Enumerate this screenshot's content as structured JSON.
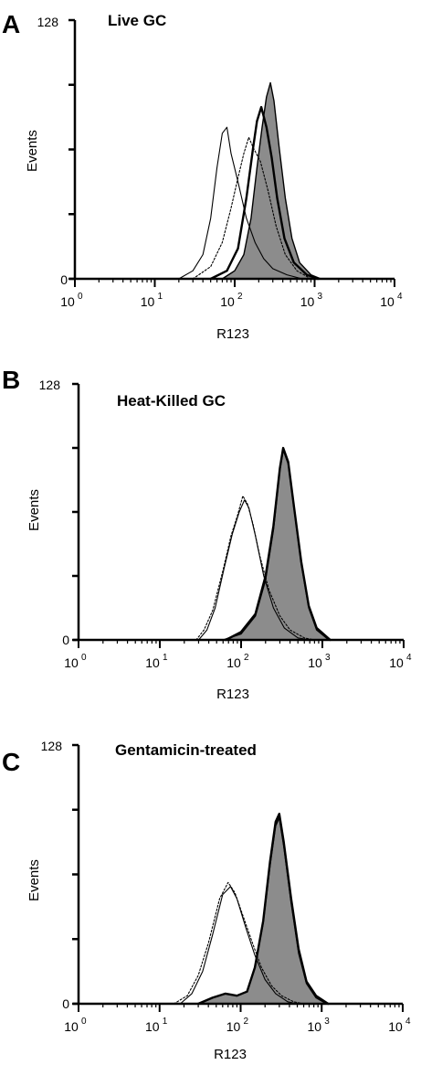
{
  "chart_data": [
    {
      "type": "area",
      "panel_label": "A",
      "title": "Live GC",
      "xlabel": "R123",
      "ylabel": "Events",
      "x_scale": "log",
      "xlim": [
        1,
        10000
      ],
      "ylim": [
        0,
        128
      ],
      "x_ticks": [
        {
          "base": "10",
          "exp": "0"
        },
        {
          "base": "10",
          "exp": "1"
        },
        {
          "base": "10",
          "exp": "2"
        },
        {
          "base": "10",
          "exp": "3"
        },
        {
          "base": "10",
          "exp": "4"
        }
      ],
      "y_ticks": [
        "0",
        "128"
      ],
      "series": [
        {
          "style": "thin-solid",
          "points": [
            [
              20,
              0
            ],
            [
              30,
              4
            ],
            [
              40,
              12
            ],
            [
              50,
              30
            ],
            [
              60,
              55
            ],
            [
              70,
              72
            ],
            [
              80,
              75
            ],
            [
              90,
              62
            ],
            [
              110,
              48
            ],
            [
              140,
              30
            ],
            [
              180,
              18
            ],
            [
              230,
              10
            ],
            [
              300,
              5
            ],
            [
              450,
              2
            ],
            [
              700,
              0
            ]
          ]
        },
        {
          "style": "dotted",
          "points": [
            [
              30,
              0
            ],
            [
              50,
              6
            ],
            [
              70,
              18
            ],
            [
              90,
              35
            ],
            [
              110,
              50
            ],
            [
              130,
              62
            ],
            [
              150,
              70
            ],
            [
              170,
              65
            ],
            [
              210,
              58
            ],
            [
              260,
              44
            ],
            [
              330,
              26
            ],
            [
              430,
              12
            ],
            [
              600,
              4
            ],
            [
              900,
              0
            ]
          ]
        },
        {
          "style": "thick-solid",
          "points": [
            [
              50,
              0
            ],
            [
              80,
              4
            ],
            [
              110,
              15
            ],
            [
              140,
              40
            ],
            [
              170,
              65
            ],
            [
              190,
              78
            ],
            [
              215,
              85
            ],
            [
              250,
              75
            ],
            [
              290,
              60
            ],
            [
              340,
              40
            ],
            [
              420,
              20
            ],
            [
              550,
              8
            ],
            [
              800,
              2
            ],
            [
              1100,
              0
            ]
          ]
        },
        {
          "style": "filled-gray",
          "points": [
            [
              70,
              0
            ],
            [
              100,
              4
            ],
            [
              130,
              12
            ],
            [
              160,
              30
            ],
            [
              190,
              55
            ],
            [
              220,
              75
            ],
            [
              250,
              90
            ],
            [
              280,
              97
            ],
            [
              310,
              88
            ],
            [
              360,
              65
            ],
            [
              430,
              40
            ],
            [
              520,
              20
            ],
            [
              650,
              8
            ],
            [
              900,
              2
            ],
            [
              1200,
              0
            ]
          ]
        }
      ]
    },
    {
      "type": "area",
      "panel_label": "B",
      "title": "Heat-Killed GC",
      "xlabel": "R123",
      "ylabel": "Events",
      "x_scale": "log",
      "xlim": [
        1,
        10000
      ],
      "ylim": [
        0,
        128
      ],
      "x_ticks": [
        {
          "base": "10",
          "exp": "0"
        },
        {
          "base": "10",
          "exp": "1"
        },
        {
          "base": "10",
          "exp": "2"
        },
        {
          "base": "10",
          "exp": "3"
        },
        {
          "base": "10",
          "exp": "4"
        }
      ],
      "y_ticks": [
        "0",
        "128"
      ],
      "series": [
        {
          "style": "dotted",
          "points": [
            [
              28,
              0
            ],
            [
              35,
              5
            ],
            [
              45,
              15
            ],
            [
              60,
              35
            ],
            [
              75,
              52
            ],
            [
              90,
              62
            ],
            [
              105,
              72
            ],
            [
              120,
              68
            ],
            [
              140,
              58
            ],
            [
              170,
              42
            ],
            [
              220,
              25
            ],
            [
              300,
              12
            ],
            [
              400,
              5
            ],
            [
              600,
              1
            ],
            [
              800,
              0
            ]
          ]
        },
        {
          "style": "thin-solid",
          "points": [
            [
              30,
              0
            ],
            [
              38,
              5
            ],
            [
              48,
              16
            ],
            [
              62,
              36
            ],
            [
              78,
              53
            ],
            [
              95,
              64
            ],
            [
              110,
              70
            ],
            [
              125,
              66
            ],
            [
              150,
              52
            ],
            [
              190,
              32
            ],
            [
              250,
              16
            ],
            [
              340,
              6
            ],
            [
              500,
              1
            ],
            [
              700,
              0
            ]
          ]
        },
        {
          "style": "filled-gray",
          "points": [
            [
              60,
              0
            ],
            [
              100,
              3
            ],
            [
              150,
              12
            ],
            [
              200,
              30
            ],
            [
              250,
              55
            ],
            [
              300,
              85
            ],
            [
              330,
              95
            ],
            [
              380,
              88
            ],
            [
              450,
              65
            ],
            [
              550,
              38
            ],
            [
              680,
              16
            ],
            [
              850,
              5
            ],
            [
              1200,
              0
            ]
          ]
        },
        {
          "style": "thick-solid",
          "points": [
            [
              65,
              0
            ],
            [
              100,
              4
            ],
            [
              150,
              13
            ],
            [
              200,
              32
            ],
            [
              250,
              57
            ],
            [
              300,
              86
            ],
            [
              330,
              96
            ],
            [
              380,
              89
            ],
            [
              450,
              66
            ],
            [
              550,
              39
            ],
            [
              680,
              17
            ],
            [
              850,
              6
            ],
            [
              1250,
              0
            ]
          ]
        }
      ]
    },
    {
      "type": "area",
      "panel_label": "C",
      "title": "Gentamicin-treated",
      "xlabel": "R123",
      "ylabel": "Events",
      "x_scale": "log",
      "xlim": [
        1,
        10000
      ],
      "ylim": [
        0,
        128
      ],
      "x_ticks": [
        {
          "base": "10",
          "exp": "0"
        },
        {
          "base": "10",
          "exp": "1"
        },
        {
          "base": "10",
          "exp": "2"
        },
        {
          "base": "10",
          "exp": "3"
        },
        {
          "base": "10",
          "exp": "4"
        }
      ],
      "y_ticks": [
        "0",
        "128"
      ],
      "series": [
        {
          "style": "dotted",
          "points": [
            [
              15,
              0
            ],
            [
              22,
              4
            ],
            [
              30,
              14
            ],
            [
              40,
              30
            ],
            [
              55,
              52
            ],
            [
              70,
              60
            ],
            [
              85,
              55
            ],
            [
              110,
              42
            ],
            [
              140,
              30
            ],
            [
              180,
              18
            ],
            [
              240,
              9
            ],
            [
              320,
              4
            ],
            [
              450,
              1
            ],
            [
              600,
              0
            ]
          ]
        },
        {
          "style": "thin-solid",
          "points": [
            [
              18,
              0
            ],
            [
              25,
              5
            ],
            [
              34,
              16
            ],
            [
              45,
              34
            ],
            [
              60,
              54
            ],
            [
              75,
              58
            ],
            [
              90,
              52
            ],
            [
              115,
              38
            ],
            [
              150,
              24
            ],
            [
              200,
              12
            ],
            [
              270,
              5
            ],
            [
              380,
              1
            ],
            [
              500,
              0
            ]
          ]
        },
        {
          "style": "filled-gray",
          "points": [
            [
              30,
              0
            ],
            [
              45,
              3
            ],
            [
              65,
              5
            ],
            [
              90,
              4
            ],
            [
              120,
              6
            ],
            [
              150,
              18
            ],
            [
              190,
              40
            ],
            [
              230,
              68
            ],
            [
              270,
              88
            ],
            [
              300,
              92
            ],
            [
              340,
              78
            ],
            [
              420,
              50
            ],
            [
              520,
              25
            ],
            [
              650,
              10
            ],
            [
              850,
              3
            ],
            [
              1150,
              0
            ]
          ]
        },
        {
          "style": "thick-solid",
          "points": [
            [
              30,
              0
            ],
            [
              45,
              3
            ],
            [
              65,
              5
            ],
            [
              90,
              4
            ],
            [
              120,
              6
            ],
            [
              150,
              18
            ],
            [
              190,
              41
            ],
            [
              230,
              70
            ],
            [
              270,
              90
            ],
            [
              300,
              94
            ],
            [
              340,
              80
            ],
            [
              420,
              52
            ],
            [
              520,
              27
            ],
            [
              650,
              11
            ],
            [
              850,
              4
            ],
            [
              1200,
              0
            ]
          ]
        }
      ]
    }
  ]
}
